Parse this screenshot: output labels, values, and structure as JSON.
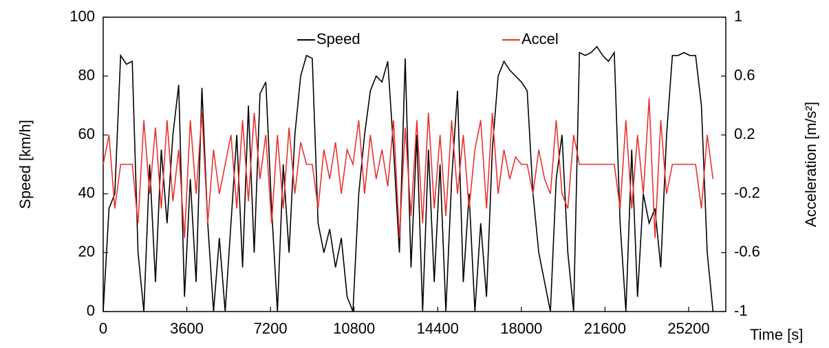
{
  "chart_data": {
    "type": "line",
    "x_label": "Time [s]",
    "y_label": "Speed [km/h]",
    "y2_label": "Acceleration [m/s²]",
    "legend": "top",
    "xlim": [
      0,
      26800
    ],
    "xticks": [
      0,
      3600,
      7200,
      10800,
      14400,
      18000,
      21600,
      25200
    ],
    "ylim": [
      0,
      100
    ],
    "yticks": [
      0,
      20,
      40,
      60,
      80,
      100
    ],
    "y2lim": [
      -1,
      1
    ],
    "y2ticks": [
      -1,
      -0.6,
      -0.2,
      0.2,
      0.6,
      1
    ],
    "x": [
      0,
      250,
      500,
      750,
      1000,
      1250,
      1500,
      1750,
      2000,
      2250,
      2500,
      2750,
      3000,
      3250,
      3500,
      3750,
      4000,
      4250,
      4500,
      4750,
      5000,
      5250,
      5500,
      5750,
      6000,
      6250,
      6500,
      6750,
      7000,
      7250,
      7500,
      7750,
      8000,
      8250,
      8500,
      8750,
      9000,
      9250,
      9500,
      9750,
      10000,
      10250,
      10500,
      10750,
      11000,
      11250,
      11500,
      11750,
      12000,
      12250,
      12500,
      12750,
      13000,
      13250,
      13500,
      13750,
      14000,
      14250,
      14500,
      14750,
      15000,
      15250,
      15500,
      15750,
      16000,
      16250,
      16500,
      16750,
      17000,
      17250,
      17500,
      17750,
      18000,
      18250,
      18500,
      18750,
      19000,
      19250,
      19500,
      19750,
      20000,
      20250,
      20500,
      20750,
      21000,
      21250,
      21500,
      21750,
      22000,
      22250,
      22500,
      22750,
      23000,
      23250,
      23500,
      23750,
      24000,
      24250,
      24500,
      24750,
      25000,
      25250,
      25500,
      25750,
      26000,
      26250
    ],
    "series": [
      {
        "name": "Speed",
        "color": "#000000",
        "values": [
          0,
          35,
          40,
          87,
          84,
          85,
          20,
          0,
          50,
          10,
          55,
          30,
          60,
          77,
          5,
          45,
          10,
          76,
          30,
          0,
          25,
          0,
          30,
          60,
          15,
          70,
          20,
          74,
          78,
          35,
          0,
          50,
          20,
          60,
          80,
          87,
          86,
          30,
          20,
          28,
          15,
          25,
          5,
          0,
          40,
          60,
          75,
          80,
          78,
          85,
          55,
          20,
          86,
          15,
          60,
          0,
          55,
          10,
          50,
          0,
          45,
          75,
          10,
          40,
          0,
          30,
          5,
          55,
          80,
          85,
          82,
          80,
          78,
          75,
          40,
          20,
          10,
          0,
          45,
          60,
          20,
          0,
          88,
          87,
          88,
          90,
          87,
          85,
          88,
          30,
          0,
          55,
          5,
          40,
          30,
          35,
          15,
          60,
          87,
          87,
          88,
          87,
          87,
          70,
          20,
          0
        ]
      },
      {
        "name": "Accel",
        "color": "#e8312f",
        "axis": "y2",
        "values": [
          0,
          0.2,
          -0.3,
          0,
          0,
          0,
          -0.4,
          0.3,
          -0.2,
          0.25,
          -0.3,
          0.3,
          -0.25,
          0.1,
          -0.5,
          0.3,
          -0.2,
          0.35,
          -0.4,
          0.1,
          -0.2,
          0,
          0.2,
          -0.3,
          0.3,
          -0.25,
          0.35,
          -0.1,
          0.2,
          -0.4,
          0.2,
          -0.3,
          0.25,
          -0.2,
          0.15,
          0,
          0,
          -0.3,
          0.1,
          -0.1,
          0.15,
          -0.2,
          0.1,
          0,
          0.3,
          -0.2,
          0.2,
          -0.1,
          0.1,
          -0.15,
          0.3,
          -0.5,
          0.25,
          -0.35,
          0.3,
          -0.4,
          0.35,
          -0.3,
          0.2,
          -0.35,
          0.3,
          -0.2,
          0.2,
          -0.3,
          0.1,
          0.3,
          -0.3,
          0.35,
          -0.2,
          0.1,
          -0.1,
          0.05,
          0,
          0,
          -0.2,
          0.1,
          -0.1,
          -0.2,
          0.3,
          -0.2,
          -0.3,
          0.2,
          0,
          0,
          0,
          0,
          0,
          0,
          0,
          -0.3,
          0.3,
          -0.3,
          0.2,
          -0.2,
          0.45,
          -0.5,
          0.3,
          -0.2,
          0,
          0,
          0,
          0,
          0,
          -0.3,
          0.2,
          -0.1
        ]
      }
    ]
  }
}
